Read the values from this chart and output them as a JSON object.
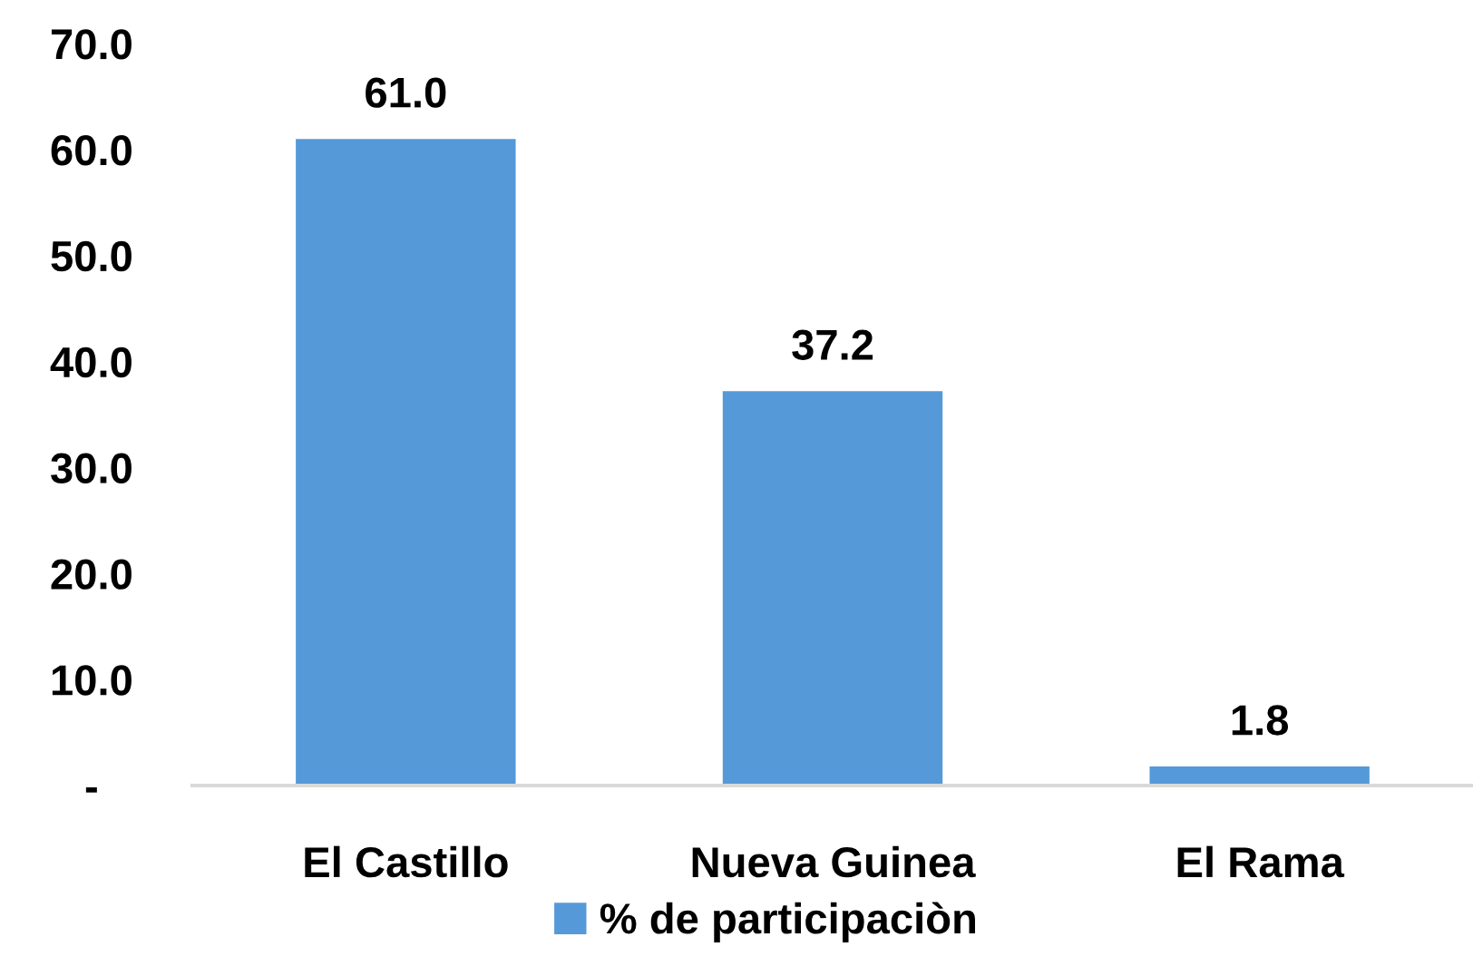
{
  "chart_data": {
    "type": "bar",
    "categories": [
      "El Castillo",
      "Nueva Guinea",
      "El Rama"
    ],
    "series": [
      {
        "name": "% de participaciòn",
        "color": "#5599d8",
        "values": [
          61.0,
          37.2,
          1.8
        ],
        "value_labels": [
          "61.0",
          "37.2",
          "1.8"
        ]
      }
    ],
    "ylim": [
      0,
      70
    ],
    "yticks": [
      {
        "value": 0,
        "label": "-"
      },
      {
        "value": 10,
        "label": "10.0"
      },
      {
        "value": 20,
        "label": "20.0"
      },
      {
        "value": 30,
        "label": "30.0"
      },
      {
        "value": 40,
        "label": "40.0"
      },
      {
        "value": 50,
        "label": "50.0"
      },
      {
        "value": 60,
        "label": "60.0"
      },
      {
        "value": 70,
        "label": "70.0"
      }
    ],
    "legend": "bottom"
  }
}
